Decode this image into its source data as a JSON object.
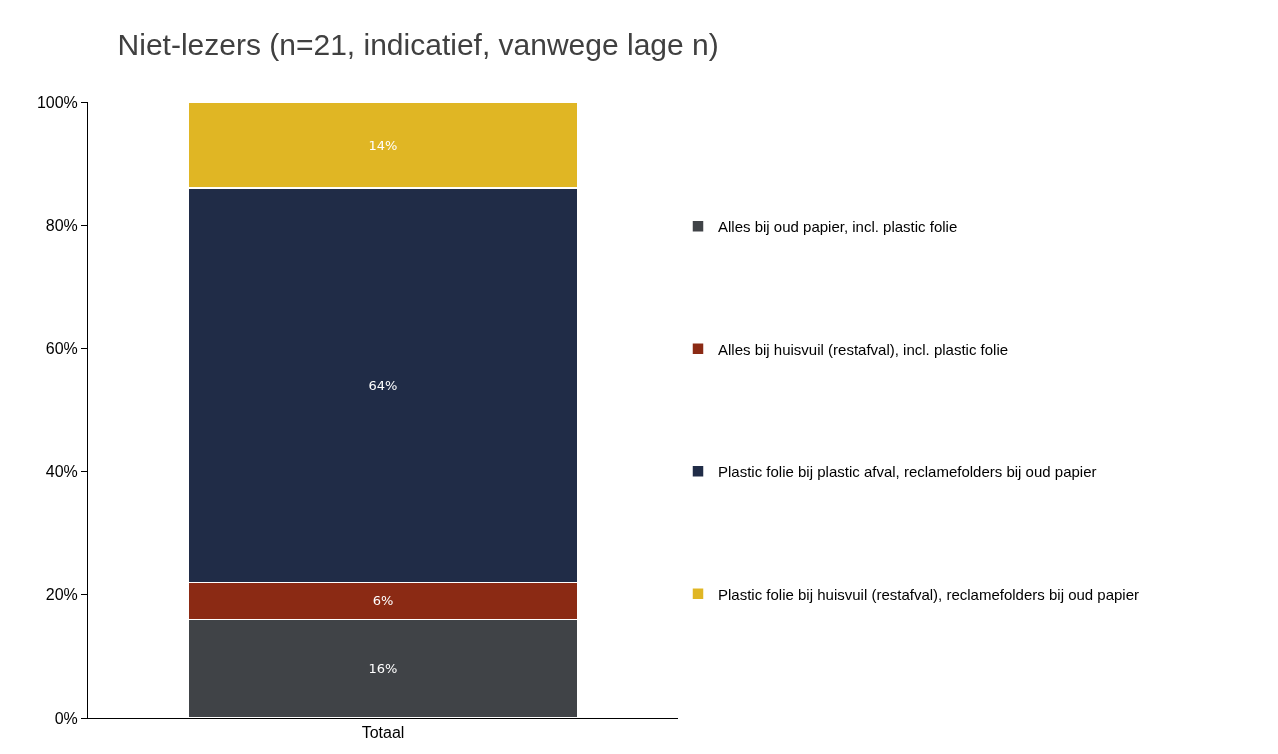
{
  "chart_data": {
    "type": "bar",
    "title": "Niet-lezers (n=21, indicatief, vanwege lage n)",
    "categories": [
      "Totaal"
    ],
    "stacked": true,
    "series": [
      {
        "name": "Alles bij oud papier, incl. plastic folie",
        "color": "#404347",
        "values": [
          16
        ],
        "value_labels": [
          "16%"
        ]
      },
      {
        "name": "Alles bij huisvuil (restafval), incl. plastic folie",
        "color": "#8b2a14",
        "values": [
          6
        ],
        "value_labels": [
          "6%"
        ]
      },
      {
        "name": "Plastic folie bij plastic afval, reclamefolders bij oud papier",
        "color": "#202c47",
        "values": [
          64
        ],
        "value_labels": [
          "64%"
        ]
      },
      {
        "name": "Plastic folie bij huisvuil (restafval), reclamefolders bij oud papier",
        "color": "#e0b624",
        "values": [
          14
        ],
        "value_labels": [
          "14%"
        ]
      }
    ],
    "ylim": [
      0,
      100
    ],
    "yticks": [
      {
        "value": 0,
        "label": "0%"
      },
      {
        "value": 20,
        "label": "20%"
      },
      {
        "value": 40,
        "label": "40%"
      },
      {
        "value": 60,
        "label": "60%"
      },
      {
        "value": 80,
        "label": "80%"
      },
      {
        "value": 100,
        "label": "100%"
      }
    ],
    "legend": "right"
  }
}
